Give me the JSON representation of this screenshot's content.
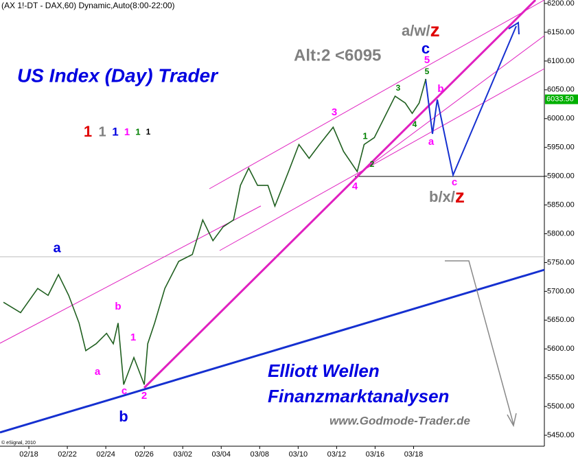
{
  "chart_data": {
    "type": "line",
    "header": "(AX 1!-DT - DAX,60) Dynamic,Auto(8:00-22:00)",
    "title": "US Index (Day) Trader",
    "subtitle": "Alt:2 <6095",
    "footer_lines": [
      "Elliott Wellen",
      "Finanzmarktanalysen"
    ],
    "website": "www.Godmode-Trader.de",
    "copyright": "© eSignal, 2010",
    "x": [
      -1.32,
      -0.43,
      0.46,
      1.0,
      1.54,
      2.07,
      2.61,
      2.96,
      3.5,
      4.04,
      4.39,
      4.64,
      4.93,
      5.46,
      6.0,
      6.18,
      6.54,
      7.07,
      7.79,
      8.5,
      9.04,
      9.57,
      10.1,
      10.64,
      11.0,
      11.43,
      11.89,
      12.43,
      12.79,
      13.5,
      14.04,
      14.57,
      15.11,
      15.82,
      16.36,
      17.07,
      17.43,
      17.96,
      18.5,
      19.04,
      19.57,
      19.93,
      20.29,
      20.64
    ],
    "values": [
      5681,
      5663,
      5705,
      5693,
      5729,
      5693,
      5645,
      5597,
      5609,
      5627,
      5609,
      5645,
      5538,
      5585,
      5538,
      5609,
      5645,
      5705,
      5752,
      5764,
      5824,
      5788,
      5812,
      5824,
      5884,
      5914,
      5884,
      5884,
      5848,
      5908,
      5955,
      5931,
      5955,
      5985,
      5943,
      5908,
      5955,
      5967,
      6003,
      6039,
      6027,
      6009,
      6027,
      6069
    ],
    "color": "#1f5f1f",
    "last_price": {
      "value": 6033.5,
      "label": "6033.50"
    },
    "xlim": [
      -1.5,
      26.8
    ],
    "xticks": [
      {
        "value": 0,
        "label": "02/18"
      },
      {
        "value": 2,
        "label": "02/22"
      },
      {
        "value": 4,
        "label": "02/24"
      },
      {
        "value": 6,
        "label": "02/26"
      },
      {
        "value": 8,
        "label": "03/02"
      },
      {
        "value": 10,
        "label": "03/04"
      },
      {
        "value": 12,
        "label": "03/08"
      },
      {
        "value": 14,
        "label": "03/10"
      },
      {
        "value": 16,
        "label": "03/12"
      },
      {
        "value": 18,
        "label": "03/16"
      },
      {
        "value": 20,
        "label": "03/18"
      }
    ],
    "ylim": [
      5431,
      6206
    ],
    "yticks": [
      {
        "value": 5450,
        "label": "5450.00"
      },
      {
        "value": 5500,
        "label": "5500.00"
      },
      {
        "value": 5550,
        "label": "5550.00"
      },
      {
        "value": 5600,
        "label": "5600.00"
      },
      {
        "value": 5650,
        "label": "5650.00"
      },
      {
        "value": 5700,
        "label": "5700.00"
      },
      {
        "value": 5750,
        "label": "5750.00"
      },
      {
        "value": 5800,
        "label": "5800.00"
      },
      {
        "value": 5850,
        "label": "5850.00"
      },
      {
        "value": 5900,
        "label": "5900.00"
      },
      {
        "value": 5950,
        "label": "5950.00"
      },
      {
        "value": 6000,
        "label": "6000.00"
      },
      {
        "value": 6050,
        "label": "6050.00"
      },
      {
        "value": 6100,
        "label": "6100.00"
      },
      {
        "value": 6150,
        "label": "6150.00"
      },
      {
        "value": 6200,
        "label": "6200.00"
      }
    ],
    "legend_digits": [
      {
        "text": "1",
        "color": "#e00000"
      },
      {
        "text": "1",
        "color": "#808080"
      },
      {
        "text": "1",
        "color": "#0000e0"
      },
      {
        "text": "1",
        "color": "#ff00ff"
      },
      {
        "text": "1",
        "color": "#008000"
      },
      {
        "text": "1",
        "color": "#000000"
      }
    ],
    "annotations": [
      {
        "text": "a",
        "color": "#0000e0"
      },
      {
        "text": "b",
        "color": "#ff00ff"
      },
      {
        "text": "a",
        "color": "#ff00ff"
      },
      {
        "text": "1",
        "color": "#ff00ff"
      },
      {
        "text": "c",
        "color": "#ff00ff"
      },
      {
        "text": "b",
        "color": "#0000e0"
      },
      {
        "text": "2",
        "color": "#ff00ff"
      },
      {
        "text": "3",
        "color": "#ff00ff"
      },
      {
        "text": "4",
        "color": "#ff00ff"
      },
      {
        "text": "1",
        "color": "#008000"
      },
      {
        "text": "2",
        "color": "#008000"
      },
      {
        "text": "3",
        "color": "#008000"
      },
      {
        "text": "4",
        "color": "#008000"
      },
      {
        "text": "5",
        "color": "#008000"
      },
      {
        "text": "5",
        "color": "#ff00ff"
      },
      {
        "text": "c",
        "color": "#0000e0"
      },
      {
        "text": "b",
        "color": "#ff00ff"
      },
      {
        "text": "a",
        "color": "#ff00ff"
      },
      {
        "text": "c",
        "color": "#ff00ff"
      }
    ],
    "scenario_labels": [
      [
        {
          "text": "a/w/",
          "color": "#808080"
        },
        {
          "text": "z",
          "color": "#e00000"
        }
      ],
      [
        {
          "text": "b/x/",
          "color": "#808080"
        },
        {
          "text": "z",
          "color": "#e00000"
        }
      ]
    ]
  }
}
